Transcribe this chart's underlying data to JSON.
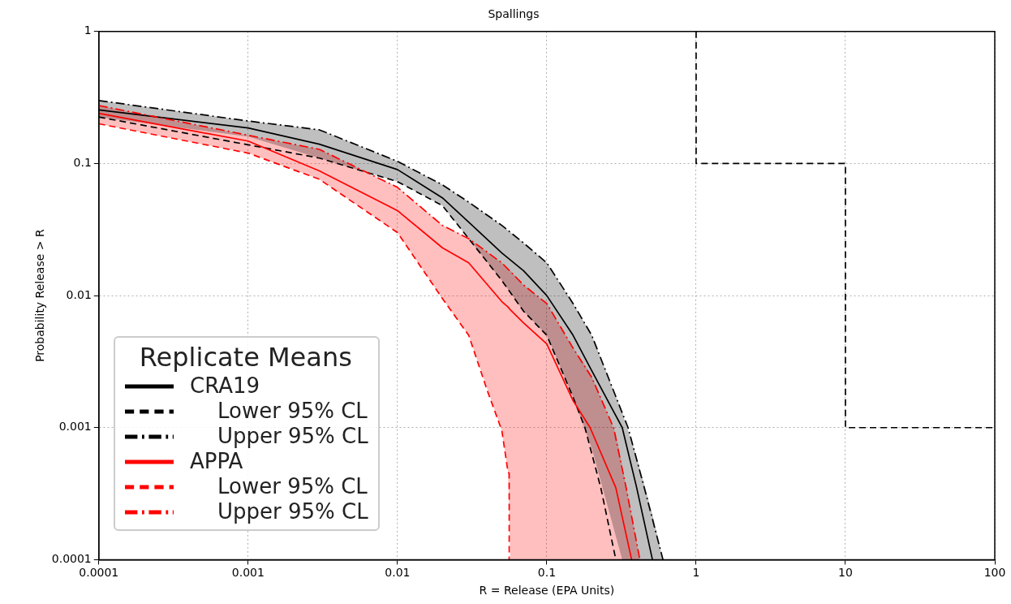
{
  "chart_data": {
    "type": "line",
    "title": "Spallings",
    "xlabel": "R = Release (EPA Units)",
    "ylabel": "Probability Release > R",
    "legend_title": "Replicate Means",
    "legend": "bottom left",
    "log": "xy",
    "grid": true,
    "marker": "none",
    "xlim": [
      0.0001,
      100
    ],
    "xticks": [
      0.0001,
      0.001,
      0.01,
      0.1,
      1,
      10,
      100
    ],
    "ylim": [
      0.0001,
      1
    ],
    "yticks": [
      0.0001,
      0.001,
      0.01,
      0.1,
      1
    ],
    "series": [
      {
        "name": "CRA19",
        "color": "#000000",
        "line_style": "solid",
        "x": [
          0.0001,
          0.001,
          0.003,
          0.01,
          0.02,
          0.03,
          0.05,
          0.07,
          0.1,
          0.15,
          0.2,
          0.32,
          0.4,
          0.51,
          0.6
        ],
        "values": [
          0.255,
          0.186,
          0.14,
          0.09,
          0.055,
          0.036,
          0.021,
          0.0154,
          0.01,
          0.005,
          0.0027,
          0.001,
          0.00035,
          0.0001,
          null
        ],
        "lower": [
          0.225,
          0.16,
          0.11,
          0.073,
          0.048,
          0.027,
          0.013,
          0.0076,
          0.005,
          0.0017,
          0.0007,
          0.0001,
          0.0001,
          0.0001,
          0.0001
        ],
        "upper": [
          0.3,
          0.21,
          0.18,
          0.104,
          0.069,
          0.051,
          0.034,
          0.025,
          0.0177,
          0.0087,
          0.005,
          0.0013,
          0.0006,
          0.00022,
          0.0001
        ]
      },
      {
        "name": "Lower 95% CL",
        "color": "#000000",
        "line_style": "dashed",
        "x": [
          0.0001,
          0.003,
          0.01,
          0.02,
          0.03,
          0.05,
          0.07,
          0.1,
          0.15,
          0.18,
          0.23,
          0.29
        ],
        "values": [
          0.225,
          0.11,
          0.073,
          0.048,
          0.027,
          0.013,
          0.0076,
          0.005,
          0.0017,
          0.001,
          0.00035,
          0.0001
        ]
      },
      {
        "name": "Upper 95% CL",
        "color": "#000000",
        "line_style": "dashdot",
        "x": [
          0.0001,
          0.001,
          0.003,
          0.01,
          0.02,
          0.03,
          0.05,
          0.07,
          0.1,
          0.15,
          0.2,
          0.35,
          0.45,
          0.6
        ],
        "values": [
          0.3,
          0.21,
          0.18,
          0.104,
          0.069,
          0.051,
          0.034,
          0.025,
          0.0177,
          0.0087,
          0.005,
          0.001,
          0.00035,
          0.0001
        ]
      },
      {
        "name": "APPA",
        "color": "#ff0000",
        "line_style": "solid",
        "x": [
          0.0001,
          0.001,
          0.003,
          0.01,
          0.02,
          0.03,
          0.05,
          0.055,
          0.057,
          0.07,
          0.1,
          0.15,
          0.195,
          0.29,
          0.37,
          0.42
        ],
        "values": [
          0.24,
          0.148,
          0.088,
          0.044,
          0.023,
          0.0177,
          0.009,
          0.0082,
          0.0078,
          0.0062,
          0.0043,
          0.0016,
          0.001,
          0.00035,
          0.0001,
          null
        ],
        "lower": [
          0.2,
          0.12,
          0.076,
          0.03,
          0.0095,
          0.005,
          0.00095,
          0.00046,
          0.0001,
          0.0001,
          0.0001,
          0.0001,
          0.0001,
          0.0001,
          0.0001,
          0.0001
        ],
        "upper": [
          0.275,
          0.163,
          0.128,
          0.066,
          0.034,
          0.027,
          0.0177,
          0.016,
          0.0155,
          0.012,
          0.0087,
          0.004,
          0.0026,
          0.0009,
          0.00022,
          0.0001
        ]
      },
      {
        "name": "Lower 95% CL",
        "color": "#ff0000",
        "line_style": "dashed",
        "x": [
          0.0001,
          0.001,
          0.003,
          0.01,
          0.02,
          0.03,
          0.04,
          0.05,
          0.055,
          0.056,
          0.056
        ],
        "values": [
          0.2,
          0.12,
          0.076,
          0.03,
          0.0095,
          0.005,
          0.0019,
          0.00095,
          0.00046,
          0.00045,
          0.0001
        ]
      },
      {
        "name": "Upper 95% CL",
        "color": "#ff0000",
        "line_style": "dashdot",
        "x": [
          0.0001,
          0.003,
          0.01,
          0.02,
          0.03,
          0.05,
          0.07,
          0.1,
          0.15,
          0.2,
          0.28,
          0.34,
          0.42
        ],
        "values": [
          0.275,
          0.128,
          0.066,
          0.034,
          0.027,
          0.0177,
          0.012,
          0.0087,
          0.004,
          0.0024,
          0.001,
          0.00035,
          0.0001
        ]
      },
      {
        "color": "#000000",
        "line_style": "dashed",
        "x": [
          1,
          1,
          10,
          10,
          100
        ],
        "values": [
          1,
          0.1,
          0.1,
          0.001,
          0.001
        ]
      }
    ]
  }
}
